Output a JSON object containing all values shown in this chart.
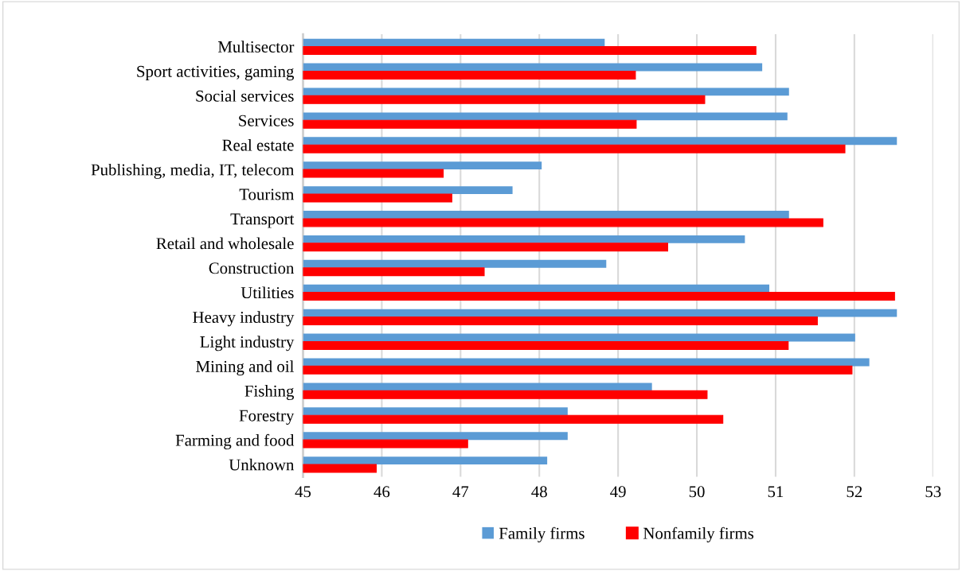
{
  "chart_data": {
    "type": "bar",
    "orientation": "horizontal",
    "categories": [
      "Multisector",
      "Sport activities, gaming",
      "Social services",
      "Services",
      "Real estate",
      "Publishing, media, IT, telecom",
      "Tourism",
      "Transport",
      "Retail and wholesale",
      "Construction",
      "Utilities",
      "Heavy industry",
      "Light industry",
      "Mining and oil",
      "Fishing",
      "Forestry",
      "Farming and food",
      "Unknown"
    ],
    "series": [
      {
        "name": "Family firms",
        "color": "#5b9bd5",
        "values": [
          48.83,
          50.83,
          51.17,
          51.15,
          52.54,
          48.03,
          47.66,
          51.17,
          50.61,
          48.85,
          50.92,
          52.54,
          52.01,
          52.19,
          49.43,
          48.36,
          48.36,
          48.1
        ]
      },
      {
        "name": "Nonfamily firms",
        "color": "#ff0000",
        "values": [
          50.75,
          49.22,
          50.1,
          49.23,
          51.88,
          46.78,
          46.89,
          51.6,
          49.63,
          47.3,
          52.51,
          51.53,
          51.16,
          51.97,
          50.13,
          50.33,
          47.09,
          45.93
        ]
      }
    ],
    "xlim": [
      45,
      53
    ],
    "xticks": [
      45,
      46,
      47,
      48,
      49,
      50,
      51,
      52,
      53
    ],
    "grid": "x",
    "legend": "bottom"
  }
}
